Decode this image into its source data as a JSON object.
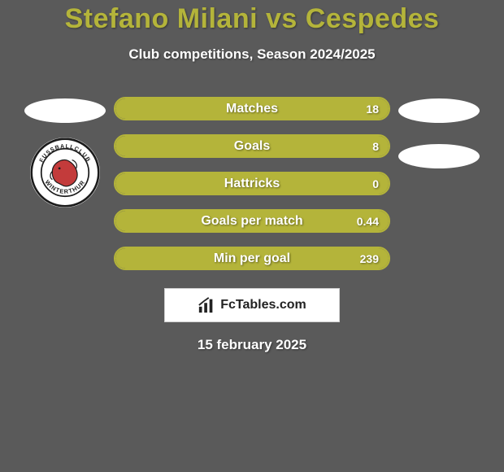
{
  "background_color": "#5a5a5a",
  "title": {
    "text": "Stefano Milani vs Cespedes",
    "color": "#b4b43a"
  },
  "subtitle": "Club competitions, Season 2024/2025",
  "ellipse_color": "#ffffff",
  "club_badge": {
    "top_text": "FUSSBALLCLUB",
    "bottom_text": "WINTERTHUR",
    "outline_color": "#1b1b1b"
  },
  "bars": {
    "fill_color": "#b4b43a",
    "border_color": "#b4b43a",
    "track_color": "transparent",
    "items": [
      {
        "label": "Matches",
        "value_right": "18",
        "fill_pct": 100
      },
      {
        "label": "Goals",
        "value_right": "8",
        "fill_pct": 100
      },
      {
        "label": "Hattricks",
        "value_right": "0",
        "fill_pct": 100
      },
      {
        "label": "Goals per match",
        "value_right": "0.44",
        "fill_pct": 100
      },
      {
        "label": "Min per goal",
        "value_right": "239",
        "fill_pct": 100
      }
    ]
  },
  "brand": {
    "label": "FcTables.com"
  },
  "date_text": "15 february 2025"
}
